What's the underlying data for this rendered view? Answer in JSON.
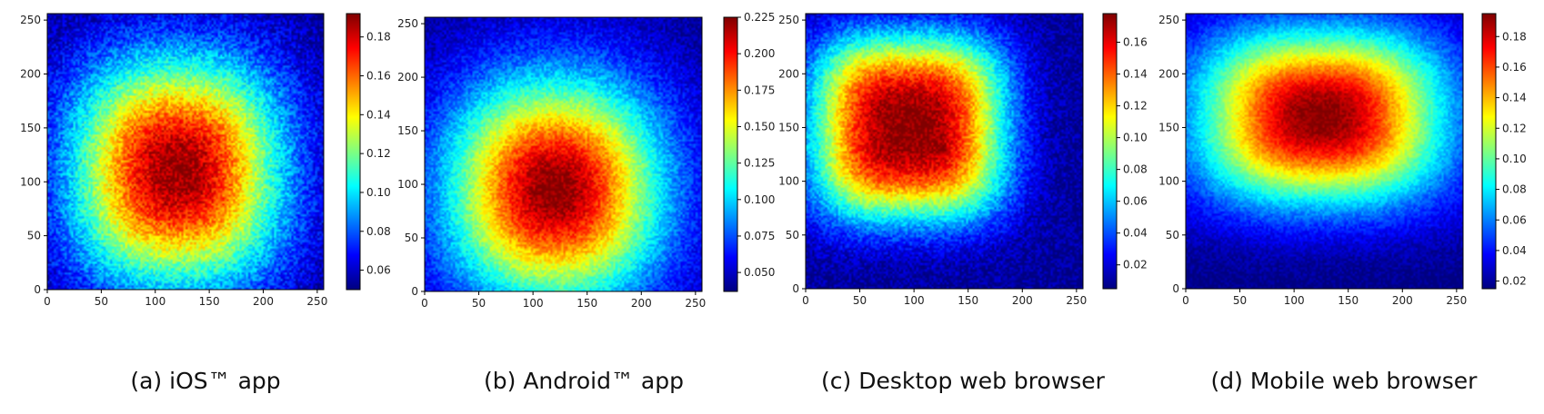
{
  "figure": {
    "panels": [
      {
        "caption": "(a) iOS™ app"
      },
      {
        "caption": "(b) Android™ app"
      },
      {
        "caption": "(c) Desktop web browser"
      },
      {
        "caption": "(d) Mobile web browser"
      }
    ]
  },
  "chart_data": [
    {
      "type": "heatmap",
      "title": "",
      "caption": "(a) iOS™ app",
      "colormap": "jet",
      "xlabel": "",
      "ylabel": "",
      "xlim": [
        0,
        256
      ],
      "ylim": [
        0,
        256
      ],
      "xticks": [
        0,
        50,
        100,
        150,
        200,
        250
      ],
      "yticks": [
        0,
        50,
        100,
        150,
        200,
        250
      ],
      "colorbar": {
        "range": [
          0.05,
          0.192
        ],
        "ticks": [
          0.06,
          0.08,
          0.1,
          0.12,
          0.14,
          0.16,
          0.18
        ]
      },
      "surface": {
        "peak": [
          120,
          110
        ],
        "peak_value": 0.19,
        "edge_value": 0.07,
        "corner_value": 0.05
      },
      "grid": false
    },
    {
      "type": "heatmap",
      "title": "",
      "caption": "(b) Android™ app",
      "colormap": "jet",
      "xlabel": "",
      "ylabel": "",
      "xlim": [
        0,
        256
      ],
      "ylim": [
        0,
        256
      ],
      "xticks": [
        0,
        50,
        100,
        150,
        200,
        250
      ],
      "yticks": [
        0,
        50,
        100,
        150,
        200,
        250
      ],
      "colorbar": {
        "range": [
          0.037,
          0.225
        ],
        "ticks": [
          0.05,
          0.075,
          0.1,
          0.125,
          0.15,
          0.175,
          0.2,
          0.225
        ]
      },
      "surface": {
        "peak": [
          120,
          95
        ],
        "peak_value": 0.22,
        "edge_value": 0.06,
        "corner_value": 0.04
      },
      "grid": false
    },
    {
      "type": "heatmap",
      "title": "",
      "caption": "(c) Desktop web browser",
      "colormap": "jet",
      "xlabel": "",
      "ylabel": "",
      "xlim": [
        0,
        256
      ],
      "ylim": [
        0,
        256
      ],
      "xticks": [
        0,
        50,
        100,
        150,
        200,
        250
      ],
      "yticks": [
        0,
        50,
        100,
        150,
        200,
        250
      ],
      "colorbar": {
        "range": [
          0.005,
          0.178
        ],
        "ticks": [
          0.02,
          0.04,
          0.06,
          0.08,
          0.1,
          0.12,
          0.14,
          0.16
        ]
      },
      "surface": {
        "peak": [
          95,
          150
        ],
        "peak_value": 0.175,
        "edge_value": 0.02,
        "corner_value": 0.01,
        "hotspot": [
          127,
          129
        ]
      },
      "grid": false
    },
    {
      "type": "heatmap",
      "title": "",
      "caption": "(d) Mobile web browser",
      "colormap": "jet",
      "xlabel": "",
      "ylabel": "",
      "xlim": [
        0,
        256
      ],
      "ylim": [
        0,
        256
      ],
      "xticks": [
        0,
        50,
        100,
        150,
        200,
        250
      ],
      "yticks": [
        0,
        50,
        100,
        150,
        200,
        250
      ],
      "colorbar": {
        "range": [
          0.015,
          0.195
        ],
        "ticks": [
          0.02,
          0.04,
          0.06,
          0.08,
          0.1,
          0.12,
          0.14,
          0.16,
          0.18
        ]
      },
      "surface": {
        "peak": [
          125,
          160
        ],
        "peak_value": 0.19,
        "edge_value": 0.04,
        "corner_value": 0.02
      },
      "grid": false
    }
  ]
}
